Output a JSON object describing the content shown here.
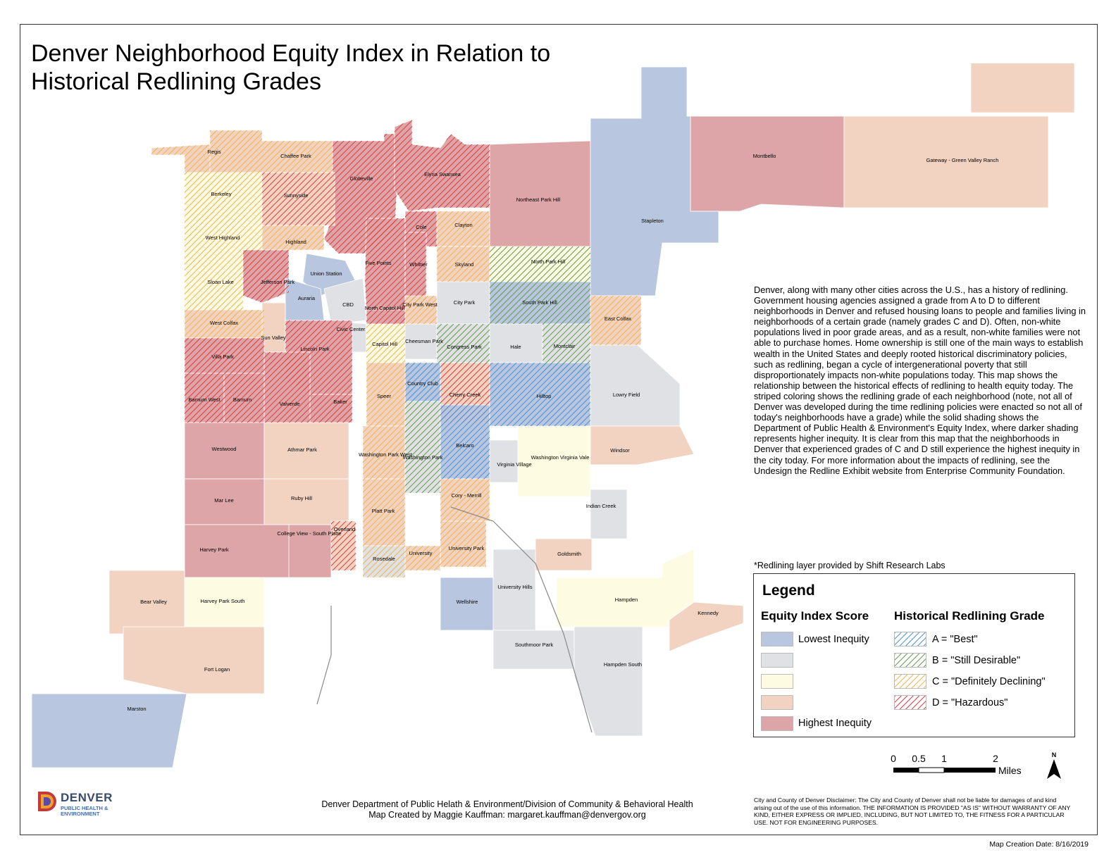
{
  "title": {
    "line1": "Denver Neighborhood Equity Index in Relation to",
    "line2": "Historical Redlining Grades"
  },
  "colors": {
    "lowest_inequity": "#b8c7df",
    "low_inequity": "#dfe1e4",
    "mid_inequity": "#fefbe3",
    "high_inequity": "#f2d3c2",
    "highest_inequity": "#dea5a8",
    "grade_a": "#4a8fd4",
    "grade_b": "#5f9a48",
    "grade_c": "#f0b24a",
    "grade_d": "#e03a3a"
  },
  "neighborhoods": [
    "Regis",
    "Chaffee Park",
    "Globeville",
    "Elyria Swansea",
    "Northeast Park Hill",
    "Montbello",
    "DIA",
    "Gateway - Green Valley Ranch",
    "Stapleton",
    "Berkeley",
    "Sunnyside",
    "Cole",
    "Clayton",
    "West Highland",
    "Highland",
    "Five Points",
    "Whittier",
    "Skyland",
    "North Park Hill",
    "Union Station",
    "Sloan Lake",
    "Jefferson Park",
    "Auraria",
    "CBD",
    "North Capitol Hill",
    "City Park West",
    "City Park",
    "South Park Hill",
    "East Colfax",
    "West Colfax",
    "Civic Center",
    "Sun Valley",
    "Lincoln Park",
    "Capitol Hill",
    "Cheesman Park",
    "Congress Park",
    "Hale",
    "Montclair",
    "Villa Park",
    "Country Club",
    "Cherry Creek",
    "Hilltop",
    "Lowry Field",
    "Barnum West",
    "Barnum",
    "Valverde",
    "Baker",
    "Speer",
    "Westwood",
    "Athmar Park",
    "Washington Park West",
    "Washington Park",
    "Belcaro",
    "Virginia Village",
    "Washington Virginia Vale",
    "Windsor",
    "Mar Lee",
    "Ruby Hill",
    "Cory - Merrill",
    "Indian Creek",
    "Platt Park",
    "College View - South Platte",
    "Overland",
    "Harvey Park",
    "University Park",
    "Goldsmith",
    "University",
    "Rosedale",
    "Bear Valley",
    "Harvey Park South",
    "Wellshire",
    "University Hills",
    "Hampden",
    "Kennedy",
    "Southmoor Park",
    "Hampden South",
    "Fort Logan",
    "Marston"
  ],
  "description": "Denver, along with many other cities across the U.S., has a history of redlining.  Government housing agencies assigned a grade from A to D to different neighborhoods in Denver and refused housing loans to people and families living in neighborhoods of a certain grade (namely grades C and D).  Often, non-white populations lived in poor grade areas, and as a result, non-white families were not able to purchase homes. Home ownership is still one of the main ways to establish wealth in the United States and deeply rooted historical discriminatory policies, such as redlining, began a cycle of intergenerational poverty that still disproportionately impacts non-white populations today.  This map shows the relationship between the historical effects of redlining to health equity today.  The striped coloring shows the redlining grade of each neighborhood (note, not all of Denver was developed during the time redlining policies were enacted so not all of today's neighborhoods have a grade) while the solid shading shows the Department of Public Health & Environment's Equity Index, where darker shading represents higher inequity. It is clear from this map that the neighborhoods in Denver that experienced grades of C and D still experience the highest inequity in the city today. For more information about the impacts of redlining, see the Undesign the Redline Exhibit website from Enterprise Community Foundation.",
  "redlining_credit": "*Redlining layer provided by Shift Research Labs",
  "legend": {
    "title": "Legend",
    "equity_header": "Equity Index Score",
    "redlining_header": "Historical Redlining Grade",
    "equity_low_label": "Lowest Inequity",
    "equity_high_label": "Highest Inequity",
    "grade_a": "A = \"Best\"",
    "grade_b": "B = \"Still Desirable\"",
    "grade_c": "C = \"Definitely Declining\"",
    "grade_d": "D = \"Hazardous\""
  },
  "scale": {
    "tick_0": "0",
    "tick_05": "0.5",
    "tick_1": "1",
    "tick_2": "2",
    "unit": "Miles",
    "north": "N"
  },
  "logo": {
    "name": "DENVER",
    "sub1": "PUBLIC HEALTH &",
    "sub2": "ENVIRONMENT"
  },
  "footer": {
    "line1": "Denver Department of Public Helath & Environment/Division of Community & Behavioral Health",
    "line2": "Map Created by Maggie Kauffman: margaret.kauffman@denvergov.org"
  },
  "disclaimer": "City and County of Denver Disclaimer: The City and County of Denver shall not be liable for damages of and kind arising out of the use of this information. THE INFORMATION IS PROVIDED \"AS IS\" WITHOUT WARRANTY OF ANY KIND, EITHER EXPRESS OR IMPLIED, INCLUDING, BUT NOT LIMITED TO, THE FITNESS FOR A PARTICULAR USE. NOT FOR ENGINEERING PURPOSES.",
  "creation_date": "Map Creation Date: 8/16/2019"
}
